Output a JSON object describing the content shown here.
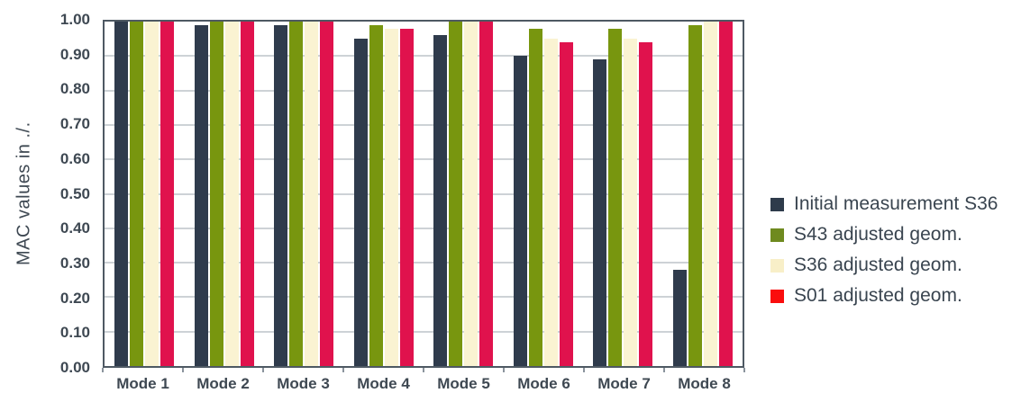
{
  "chart_data": {
    "type": "bar",
    "title": "",
    "ylabel": "MAC values in ./.",
    "xlabel": "",
    "ylim": [
      0,
      1
    ],
    "ytick_step": 0.1,
    "ytick_labels": [
      "0.00",
      "0.10",
      "0.20",
      "0.30",
      "0.40",
      "0.50",
      "0.60",
      "0.70",
      "0.80",
      "0.90",
      "1.00"
    ],
    "grid": true,
    "legend_position": "right",
    "categories": [
      "Mode 1",
      "Mode 2",
      "Mode 3",
      "Mode 4",
      "Mode 5",
      "Mode 6",
      "Mode 7",
      "Mode 8"
    ],
    "series": [
      {
        "name": "Initial measurement S36",
        "color": "#2F3B4C",
        "legend_color": "#2E3B4B",
        "values": [
          1.0,
          0.99,
          0.99,
          0.95,
          0.96,
          0.9,
          0.89,
          0.28
        ]
      },
      {
        "name": "S43 adjusted geom.",
        "color": "#78960F",
        "legend_color": "#6F8A1F",
        "values": [
          1.0,
          1.0,
          1.0,
          0.99,
          1.0,
          0.98,
          0.98,
          0.99
        ]
      },
      {
        "name": "S36 adjusted geom.",
        "color": "#FAF3D2",
        "legend_color": "#F8EFC8",
        "values": [
          1.0,
          1.0,
          1.0,
          0.98,
          1.0,
          0.95,
          0.95,
          1.0
        ]
      },
      {
        "name": "S01 adjusted geom.",
        "color": "#E0124D",
        "legend_color": "#FA0D0D",
        "values": [
          1.0,
          1.0,
          1.0,
          0.98,
          1.0,
          0.94,
          0.94,
          1.0
        ]
      }
    ],
    "colors": {
      "text": "#3E4852",
      "grid": "#CDD2D6",
      "axis_border": "#4E5963",
      "background": "#FFFFFF"
    }
  }
}
